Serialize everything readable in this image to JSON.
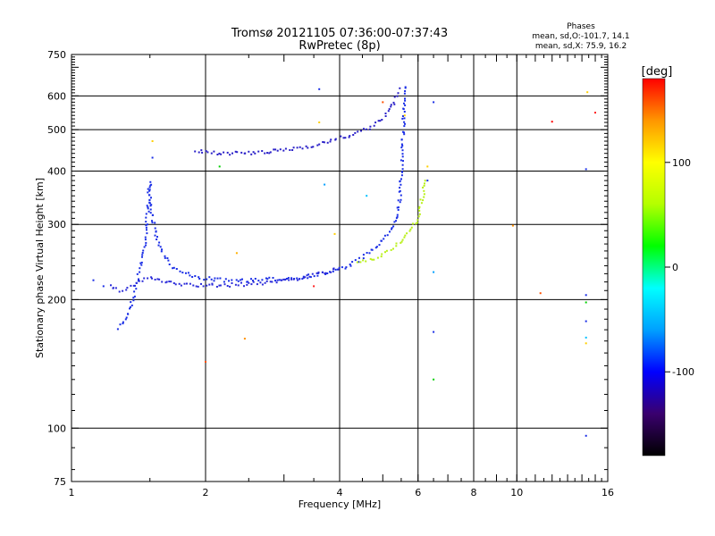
{
  "chart_data": {
    "type": "scatter",
    "title": "Tromsø 20121105 07:36:00-07:37:43",
    "subtitle": "RwPretec (8p)",
    "xlabel": "Frequency [MHz]",
    "ylabel": "Stationary phase Virtual Height [km]",
    "x_scale": "log",
    "y_scale": "log",
    "xlim": [
      1,
      16
    ],
    "ylim": [
      75,
      750
    ],
    "x_ticks": [
      1,
      2,
      4,
      6,
      8,
      10,
      16
    ],
    "x_tick_labels": [
      "1",
      "2",
      "4",
      "6",
      "8",
      "10",
      "16"
    ],
    "x_gridlines": [
      2,
      4,
      6,
      8,
      10
    ],
    "y_ticks": [
      75,
      100,
      200,
      300,
      400,
      500,
      600,
      750
    ],
    "y_tick_labels": [
      "75",
      "100",
      "200",
      "300",
      "400",
      "500",
      "600",
      "750"
    ],
    "y_gridlines": [
      100,
      200,
      300,
      400,
      500,
      600
    ],
    "grid": true,
    "phases_title": "Phases",
    "phases_o": "mean, sd,O:-101.7, 14.1",
    "phases_x": "mean, sd,X:  75.9, 16.2",
    "colorbar": {
      "label": "[deg]",
      "range": [
        -180,
        180
      ],
      "ticks": [
        100,
        0,
        -100
      ],
      "tick_labels": [
        "100",
        "0",
        "-100"
      ],
      "colors": [
        "#000000",
        "#3a006e",
        "#0000ff",
        "#00a0ff",
        "#00ffff",
        "#00ff00",
        "#b4ff00",
        "#ffff00",
        "#ff9600",
        "#ff0000"
      ]
    },
    "series": [
      {
        "phase_deg": -110,
        "color": "#1a2ee6",
        "points": [
          [
            1.28,
            172
          ],
          [
            1.3,
            176
          ],
          [
            1.32,
            180
          ],
          [
            1.34,
            186
          ],
          [
            1.36,
            195
          ],
          [
            1.38,
            205
          ],
          [
            1.4,
            218
          ],
          [
            1.42,
            232
          ],
          [
            1.44,
            250
          ],
          [
            1.46,
            268
          ],
          [
            1.47,
            290
          ],
          [
            1.48,
            315
          ],
          [
            1.49,
            345
          ],
          [
            1.5,
            375
          ],
          [
            1.51,
            330
          ],
          [
            1.53,
            300
          ],
          [
            1.55,
            280
          ],
          [
            1.58,
            265
          ],
          [
            1.62,
            252
          ],
          [
            1.66,
            242
          ],
          [
            1.7,
            236
          ],
          [
            1.8,
            230
          ],
          [
            1.9,
            226
          ],
          [
            2.0,
            224
          ],
          [
            2.2,
            222
          ],
          [
            2.4,
            222
          ],
          [
            2.6,
            222
          ],
          [
            2.8,
            223
          ],
          [
            3.0,
            224
          ],
          [
            3.2,
            225
          ],
          [
            3.5,
            228
          ],
          [
            3.8,
            232
          ],
          [
            4.0,
            236
          ],
          [
            4.2,
            240
          ],
          [
            4.4,
            247
          ],
          [
            4.6,
            255
          ],
          [
            4.8,
            265
          ],
          [
            5.0,
            275
          ],
          [
            5.2,
            290
          ],
          [
            5.35,
            310
          ],
          [
            5.45,
            340
          ],
          [
            5.5,
            380
          ],
          [
            5.53,
            420
          ],
          [
            5.55,
            470
          ],
          [
            5.57,
            520
          ],
          [
            5.58,
            580
          ],
          [
            5.6,
            640
          ]
        ]
      },
      {
        "phase_deg": -115,
        "color": "#2b2bd9",
        "points": [
          [
            1.22,
            216
          ],
          [
            1.25,
            212
          ],
          [
            1.28,
            210
          ],
          [
            1.32,
            212
          ],
          [
            1.36,
            215
          ],
          [
            1.4,
            218
          ],
          [
            1.44,
            222
          ],
          [
            1.5,
            226
          ],
          [
            1.56,
            222
          ],
          [
            1.62,
            220
          ],
          [
            1.7,
            218
          ],
          [
            1.8,
            217
          ],
          [
            1.9,
            216
          ],
          [
            2.0,
            216
          ],
          [
            2.2,
            216
          ],
          [
            2.4,
            217
          ],
          [
            2.6,
            218
          ],
          [
            2.8,
            220
          ],
          [
            3.0,
            222
          ],
          [
            3.2,
            224
          ],
          [
            3.4,
            227
          ],
          [
            3.6,
            230
          ],
          [
            3.8,
            233
          ],
          [
            4.0,
            236
          ]
        ]
      },
      {
        "phase_deg": -120,
        "color": "#2a20c8",
        "points": [
          [
            1.9,
            445
          ],
          [
            2.0,
            442
          ],
          [
            2.5,
            440
          ],
          [
            2.7,
            442
          ],
          [
            3.0,
            448
          ],
          [
            3.3,
            455
          ],
          [
            3.5,
            460
          ],
          [
            3.8,
            470
          ],
          [
            4.0,
            478
          ],
          [
            4.3,
            488
          ],
          [
            4.6,
            500
          ],
          [
            4.9,
            520
          ],
          [
            5.1,
            545
          ],
          [
            5.3,
            575
          ],
          [
            5.4,
            610
          ],
          [
            5.45,
            630
          ]
        ]
      },
      {
        "phase_deg": 80,
        "color": "#b9f01a",
        "points": [
          [
            4.4,
            243
          ],
          [
            4.6,
            246
          ],
          [
            4.8,
            250
          ],
          [
            5.0,
            255
          ],
          [
            5.2,
            262
          ],
          [
            5.4,
            270
          ],
          [
            5.6,
            280
          ],
          [
            5.8,
            292
          ],
          [
            5.95,
            305
          ],
          [
            6.05,
            320
          ],
          [
            6.12,
            340
          ],
          [
            6.18,
            360
          ],
          [
            6.22,
            385
          ]
        ]
      }
    ],
    "scattered_points": [
      {
        "x": 1.12,
        "y": 222,
        "color": "#1a2ee6"
      },
      {
        "x": 1.18,
        "y": 215,
        "color": "#1a2ee6"
      },
      {
        "x": 1.52,
        "y": 470,
        "color": "#ffd000"
      },
      {
        "x": 1.52,
        "y": 430,
        "color": "#1a2ee6"
      },
      {
        "x": 2.0,
        "y": 143,
        "color": "#ff5000"
      },
      {
        "x": 2.15,
        "y": 410,
        "color": "#00d000"
      },
      {
        "x": 2.35,
        "y": 257,
        "color": "#ffb000"
      },
      {
        "x": 2.45,
        "y": 162,
        "color": "#ff9000"
      },
      {
        "x": 3.5,
        "y": 215,
        "color": "#ff2020"
      },
      {
        "x": 3.6,
        "y": 622,
        "color": "#1a2ee6"
      },
      {
        "x": 3.6,
        "y": 520,
        "color": "#ffd000"
      },
      {
        "x": 3.7,
        "y": 372,
        "color": "#00a0ff"
      },
      {
        "x": 3.9,
        "y": 285,
        "color": "#ffd000"
      },
      {
        "x": 4.6,
        "y": 350,
        "color": "#00c0ff"
      },
      {
        "x": 5.0,
        "y": 580,
        "color": "#ff5000"
      },
      {
        "x": 5.6,
        "y": 540,
        "color": "#ffd000"
      },
      {
        "x": 6.3,
        "y": 410,
        "color": "#ffd000"
      },
      {
        "x": 6.5,
        "y": 580,
        "color": "#1a2ee6"
      },
      {
        "x": 6.5,
        "y": 232,
        "color": "#00a0ff"
      },
      {
        "x": 6.5,
        "y": 168,
        "color": "#1a2ee6"
      },
      {
        "x": 6.5,
        "y": 130,
        "color": "#00d000"
      },
      {
        "x": 6.3,
        "y": 380,
        "color": "#1a2ee6"
      },
      {
        "x": 9.8,
        "y": 298,
        "color": "#ff9000"
      },
      {
        "x": 11.3,
        "y": 207,
        "color": "#ff5000"
      },
      {
        "x": 12.0,
        "y": 522,
        "color": "#ff0000"
      },
      {
        "x": 14.4,
        "y": 612,
        "color": "#ffd000"
      },
      {
        "x": 14.3,
        "y": 404,
        "color": "#1a2ee6"
      },
      {
        "x": 14.3,
        "y": 205,
        "color": "#1a2ee6"
      },
      {
        "x": 14.3,
        "y": 197,
        "color": "#00d000"
      },
      {
        "x": 14.3,
        "y": 178,
        "color": "#1a2ee6"
      },
      {
        "x": 14.3,
        "y": 163,
        "color": "#00c0ff"
      },
      {
        "x": 14.3,
        "y": 158,
        "color": "#ffd000"
      },
      {
        "x": 14.3,
        "y": 96,
        "color": "#1a2ee6"
      },
      {
        "x": 15.0,
        "y": 548,
        "color": "#ff2020"
      }
    ]
  }
}
